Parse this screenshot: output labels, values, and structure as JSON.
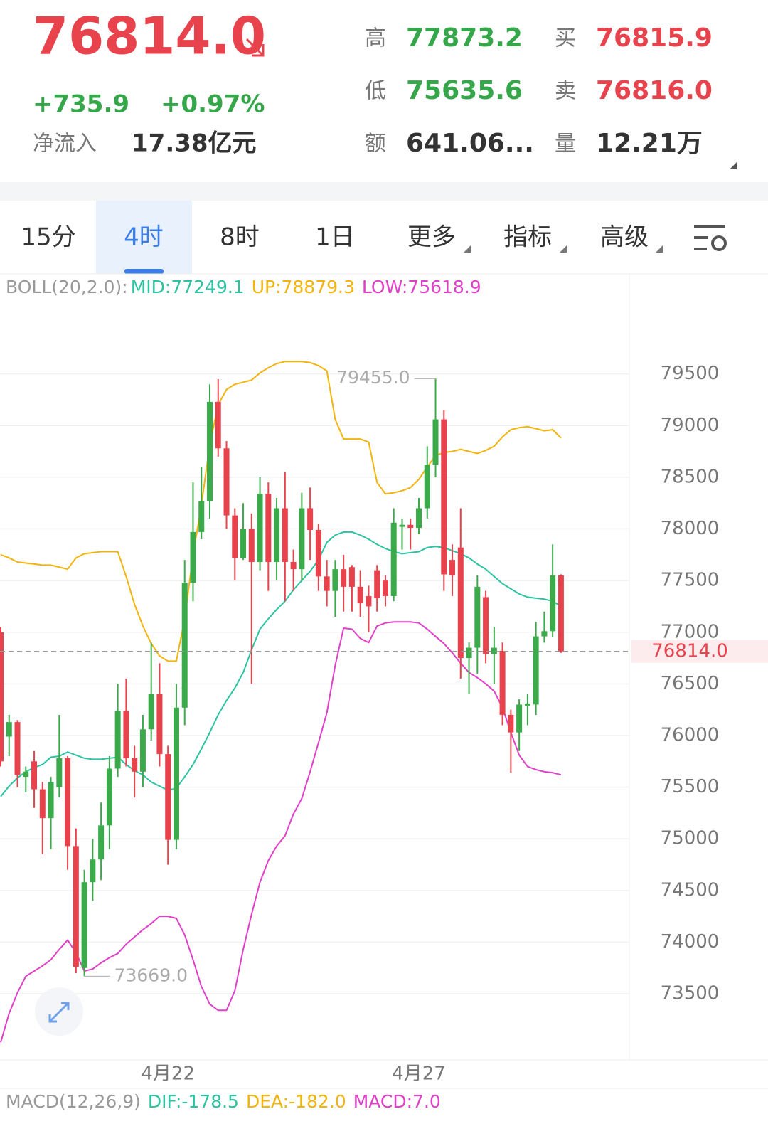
{
  "header": {
    "price": "76814.0",
    "change": "+735.9",
    "change_pct": "+0.97%",
    "net_flow_label": "净流入",
    "net_flow_value": "17.38亿元",
    "stats": [
      {
        "label": "高",
        "value": "77873.2"
      },
      {
        "label": "低",
        "value": "75635.6"
      },
      {
        "label": "额",
        "value": "641.06..."
      },
      {
        "label": "买",
        "value": "76815.9"
      },
      {
        "label": "卖",
        "value": "76816.0"
      },
      {
        "label": "量",
        "value": "12.21万"
      }
    ]
  },
  "tabs": [
    "15分",
    "4时",
    "8时",
    "1日",
    "更多",
    "指标",
    "高级"
  ],
  "chart_data": {
    "type": "candlestick",
    "legend": [
      "BOLL(20,2.0):",
      "MID:77249.1",
      "UP:78879.3",
      "LOW:75618.9"
    ],
    "macd_legend": [
      "MACD(12,26,9)",
      "DIF:-178.5",
      "DEA:-182.0",
      "MACD:7.0"
    ],
    "categories": [
      null,
      null,
      null,
      null,
      null,
      null,
      null,
      null,
      null,
      null,
      null,
      null,
      null,
      null,
      null,
      null,
      null,
      null,
      null,
      null,
      "4月22",
      null,
      null,
      null,
      null,
      null,
      null,
      null,
      null,
      null,
      null,
      null,
      null,
      null,
      null,
      null,
      null,
      null,
      null,
      null,
      null,
      null,
      null,
      null,
      null,
      null,
      null,
      null,
      null,
      null,
      "4月27",
      null,
      null,
      null,
      null,
      null,
      null,
      null,
      null,
      null,
      null,
      null,
      null,
      null,
      null,
      null,
      null,
      null
    ],
    "open": [
      77000,
      75990,
      76130,
      75600,
      75750,
      75480,
      75200,
      75500,
      75780,
      74930,
      73750,
      74580,
      74800,
      75130,
      75680,
      76240,
      75780,
      75650,
      76060,
      76400,
      75820,
      74990,
      76270,
      77480,
      77970,
      78270,
      79230,
      78780,
      78130,
      77720,
      78000,
      77680,
      78340,
      77680,
      78200,
      77680,
      77610,
      78200,
      77990,
      77540,
      77400,
      77610,
      77630,
      77440,
      77350,
      77600,
      77500,
      77350,
      78020,
      78040,
      78010,
      78200,
      78620,
      79060,
      77700,
      77820,
      76750,
      76850,
      77340,
      76790,
      76820,
      76200,
      76030,
      76290,
      76300,
      76960,
      77010,
      77550
    ],
    "high": [
      77050,
      76200,
      76150,
      75700,
      75850,
      75550,
      75600,
      76200,
      75800,
      75100,
      74700,
      75000,
      75350,
      75800,
      76500,
      76550,
      75900,
      76200,
      76900,
      76700,
      75900,
      76500,
      77700,
      78450,
      78600,
      79400,
      79450,
      78850,
      78200,
      78250,
      78150,
      78500,
      78450,
      78300,
      78550,
      77800,
      78350,
      78400,
      78050,
      77700,
      77700,
      77750,
      77650,
      77600,
      77450,
      77650,
      77550,
      78200,
      78100,
      78100,
      78300,
      78800,
      79455,
      79150,
      77850,
      78200,
      76900,
      77550,
      77400,
      77050,
      76900,
      76250,
      76350,
      76400,
      77100,
      77200,
      77850,
      77560
    ],
    "low": [
      75700,
      75800,
      75500,
      75450,
      75300,
      74850,
      74900,
      75400,
      74700,
      73700,
      73669,
      74400,
      74600,
      74900,
      75600,
      75700,
      75400,
      75500,
      75950,
      75700,
      74750,
      74900,
      76100,
      77300,
      77900,
      78100,
      78700,
      78000,
      77500,
      77700,
      76500,
      77600,
      77400,
      77500,
      77300,
      77400,
      77500,
      77700,
      77400,
      77250,
      77150,
      77200,
      77200,
      77150,
      77000,
      77200,
      77250,
      77300,
      77800,
      77800,
      77950,
      78100,
      78500,
      77400,
      77350,
      76550,
      76400,
      76600,
      76700,
      76500,
      76100,
      75640,
      75850,
      76100,
      76200,
      76900,
      76950,
      76800
    ],
    "close": [
      75750,
      76130,
      75620,
      75650,
      75480,
      75200,
      75550,
      75780,
      74930,
      73760,
      74580,
      74800,
      75130,
      75680,
      76240,
      75780,
      75650,
      76060,
      76400,
      75820,
      74990,
      76270,
      77480,
      77970,
      78270,
      79230,
      78780,
      78130,
      77720,
      78000,
      77680,
      78340,
      77680,
      78200,
      77680,
      77610,
      78200,
      77990,
      77540,
      77400,
      77610,
      77440,
      77440,
      77280,
      77250,
      77330,
      77350,
      78060,
      78040,
      78010,
      78200,
      78620,
      79060,
      77560,
      77550,
      76750,
      76850,
      77440,
      76790,
      76850,
      76200,
      76030,
      76300,
      76310,
      76960,
      77010,
      77550,
      76814
    ],
    "bands": [
      {
        "name": "UP",
        "color": "#f2b40c",
        "values": [
          77750,
          77720,
          77680,
          77670,
          77660,
          77650,
          77650,
          77630,
          77610,
          77720,
          77760,
          77770,
          77780,
          77780,
          77780,
          77540,
          77270,
          77060,
          76890,
          76770,
          76720,
          76720,
          77130,
          77750,
          78230,
          78820,
          79200,
          79350,
          79400,
          79420,
          79440,
          79510,
          79560,
          79600,
          79620,
          79620,
          79620,
          79610,
          79580,
          79530,
          79060,
          78870,
          78870,
          78870,
          78840,
          78450,
          78340,
          78350,
          78370,
          78400,
          78480,
          78600,
          78710,
          78740,
          78750,
          78770,
          78750,
          78730,
          78760,
          78800,
          78890,
          78960,
          78980,
          78990,
          78970,
          78950,
          78960,
          78880
        ]
      },
      {
        "name": "MID",
        "color": "#2cc3a2",
        "values": [
          75410,
          75510,
          75590,
          75650,
          75690,
          75720,
          75790,
          75800,
          75840,
          75810,
          75780,
          75770,
          75770,
          75780,
          75790,
          75720,
          75660,
          75620,
          75550,
          75510,
          75470,
          75490,
          75600,
          75720,
          75870,
          76030,
          76200,
          76340,
          76460,
          76610,
          76830,
          77030,
          77130,
          77220,
          77300,
          77410,
          77500,
          77590,
          77700,
          77870,
          77940,
          77970,
          77970,
          77940,
          77900,
          77850,
          77810,
          77780,
          77760,
          77770,
          77780,
          77820,
          77830,
          77820,
          77790,
          77760,
          77720,
          77660,
          77610,
          77540,
          77470,
          77420,
          77370,
          77340,
          77330,
          77320,
          77300,
          77250
        ]
      },
      {
        "name": "LOW",
        "color": "#e040c8",
        "values": [
          73030,
          73310,
          73510,
          73670,
          73720,
          73770,
          73830,
          73930,
          74020,
          73900,
          73720,
          73740,
          73800,
          73850,
          73890,
          73980,
          74050,
          74120,
          74180,
          74250,
          74250,
          74230,
          74070,
          73830,
          73570,
          73400,
          73340,
          73340,
          73530,
          73930,
          74270,
          74580,
          74790,
          74930,
          75030,
          75240,
          75390,
          75650,
          75930,
          76220,
          76680,
          77040,
          77030,
          76940,
          76900,
          77060,
          77090,
          77100,
          77100,
          77100,
          77090,
          77030,
          76960,
          76890,
          76800,
          76700,
          76610,
          76560,
          76500,
          76430,
          76270,
          76030,
          75810,
          75700,
          75670,
          75650,
          75640,
          75620
        ]
      }
    ],
    "up_color": "#e8434d",
    "down_color": "#3aaa4a",
    "ylim": [
      72860,
      80090
    ],
    "yticks": [
      73500,
      74000,
      74500,
      75000,
      75500,
      76000,
      76500,
      77000,
      77500,
      78000,
      78500,
      79000,
      79500
    ],
    "grid": true,
    "last_price": {
      "value": 76814,
      "label": "76814.0"
    },
    "max_label": {
      "value": 79455,
      "label": "79455.0"
    },
    "min_label": {
      "value": 73669,
      "label": "73669.0"
    }
  }
}
